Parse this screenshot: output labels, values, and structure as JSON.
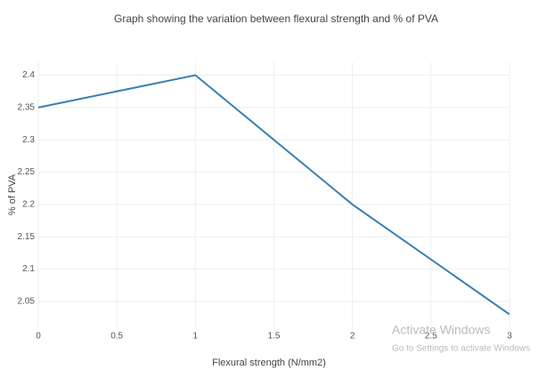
{
  "chart_data": {
    "type": "line",
    "title": "Graph showing the variation between flexural strength and   % of PVA",
    "x_label": "Flexural strength (N/mm2)",
    "y_label": "% of PVA",
    "x": [
      0,
      1,
      2,
      3
    ],
    "series": [
      {
        "name": "% of PVA",
        "color": "#3a7fb0",
        "values": [
          2.35,
          2.4,
          2.2,
          2.03
        ]
      }
    ],
    "xlim": [
      0,
      3
    ],
    "xticks": [
      0,
      0.5,
      1,
      1.5,
      2,
      2.5,
      3
    ],
    "ylim": [
      2.01,
      2.42
    ],
    "yticks": [
      2.05,
      2.1,
      2.15,
      2.2,
      2.25,
      2.3,
      2.35,
      2.4
    ],
    "grid": true
  },
  "watermark": {
    "title": "Activate Windows",
    "subtitle": "Go to Settings to activate Windows"
  }
}
